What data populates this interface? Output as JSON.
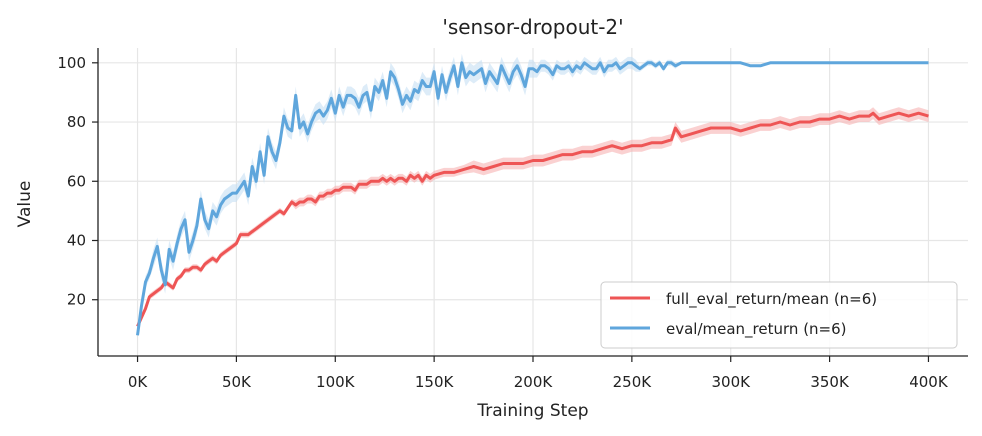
{
  "chart_data": {
    "type": "line",
    "title": "'sensor-dropout-2'",
    "xlabel": "Training Step",
    "ylabel": "Value",
    "xlim": [
      -20000,
      420000
    ],
    "ylim": [
      1,
      105
    ],
    "x_ticks": [
      0,
      50000,
      100000,
      150000,
      200000,
      250000,
      300000,
      350000,
      400000
    ],
    "x_tick_labels": [
      "0K",
      "50K",
      "100K",
      "150K",
      "200K",
      "250K",
      "300K",
      "350K",
      "400K"
    ],
    "y_ticks": [
      20,
      40,
      60,
      80,
      100
    ],
    "y_tick_labels": [
      "20",
      "40",
      "60",
      "80",
      "100"
    ],
    "grid": true,
    "legend_position": "lower-right",
    "series": [
      {
        "name": "full_eval_return/mean (n=6)",
        "color": "#ee5555",
        "band_color": "#f6b3b3",
        "x": [
          0,
          2000,
          4000,
          6000,
          8000,
          10000,
          12000,
          14000,
          16000,
          18000,
          20000,
          22000,
          24000,
          26000,
          28000,
          30000,
          32000,
          34000,
          36000,
          38000,
          40000,
          42000,
          44000,
          46000,
          48000,
          50000,
          52000,
          54000,
          56000,
          58000,
          60000,
          62000,
          64000,
          66000,
          68000,
          70000,
          72000,
          74000,
          76000,
          78000,
          80000,
          82000,
          84000,
          86000,
          88000,
          90000,
          92000,
          94000,
          96000,
          98000,
          100000,
          102000,
          104000,
          106000,
          108000,
          110000,
          112000,
          114000,
          116000,
          118000,
          120000,
          122000,
          124000,
          126000,
          128000,
          130000,
          132000,
          134000,
          136000,
          138000,
          140000,
          142000,
          144000,
          146000,
          148000,
          150000,
          155000,
          160000,
          165000,
          170000,
          175000,
          180000,
          185000,
          190000,
          195000,
          200000,
          205000,
          210000,
          215000,
          220000,
          225000,
          230000,
          235000,
          240000,
          245000,
          250000,
          255000,
          260000,
          265000,
          270000,
          272000,
          275000,
          280000,
          285000,
          290000,
          295000,
          300000,
          305000,
          310000,
          315000,
          320000,
          325000,
          330000,
          335000,
          340000,
          345000,
          350000,
          355000,
          360000,
          365000,
          370000,
          372000,
          375000,
          380000,
          385000,
          390000,
          395000,
          400000
        ],
        "values": [
          11,
          14,
          17,
          21,
          22,
          23,
          24,
          26,
          25,
          24,
          27,
          28,
          30,
          30,
          31,
          31,
          30,
          32,
          33,
          34,
          33,
          35,
          36,
          37,
          38,
          39,
          42,
          42,
          42,
          43,
          44,
          45,
          46,
          47,
          48,
          49,
          50,
          49,
          51,
          53,
          52,
          53,
          53,
          54,
          54,
          53,
          55,
          55,
          56,
          56,
          57,
          57,
          58,
          58,
          58,
          57,
          59,
          59,
          59,
          60,
          60,
          60,
          61,
          60,
          61,
          60,
          61,
          61,
          60,
          62,
          61,
          62,
          60,
          62,
          61,
          62,
          63,
          63,
          64,
          65,
          64,
          65,
          66,
          66,
          66,
          67,
          67,
          68,
          69,
          69,
          70,
          70,
          71,
          72,
          71,
          72,
          72,
          73,
          73,
          74,
          78,
          75,
          76,
          77,
          78,
          78,
          78,
          77,
          78,
          79,
          79,
          80,
          79,
          80,
          80,
          81,
          81,
          82,
          81,
          82,
          82,
          83,
          81,
          82,
          83,
          82,
          83,
          82
        ],
        "band": [
          1,
          1,
          1,
          1,
          1,
          1,
          1,
          1,
          1,
          1,
          1,
          1,
          1,
          1,
          1,
          1,
          1,
          1,
          1,
          1,
          1,
          1,
          1,
          1,
          1,
          1,
          1,
          1,
          1,
          1,
          1,
          1,
          1,
          1,
          1,
          1,
          1,
          1,
          1,
          1,
          1.5,
          1.5,
          1.5,
          1.5,
          1.5,
          1.5,
          1.5,
          1.5,
          1.5,
          1.5,
          1.5,
          1.5,
          1.5,
          1.5,
          1.5,
          1.5,
          1.5,
          1.5,
          1.5,
          1.5,
          1.5,
          1.5,
          1.5,
          1.5,
          1.5,
          1.5,
          1.5,
          1.5,
          1.5,
          1.5,
          1.5,
          1.5,
          1.5,
          1.5,
          1.5,
          1.5,
          1.5,
          1.5,
          1.5,
          2,
          2,
          2,
          2,
          2,
          2,
          2,
          2,
          2,
          2,
          2,
          2,
          2,
          2,
          2,
          2,
          2,
          2,
          2,
          2,
          2,
          2,
          2,
          2,
          2,
          2,
          2,
          2,
          2,
          2,
          2,
          2,
          2,
          2,
          2,
          2,
          2,
          2,
          2,
          2,
          2,
          2,
          2,
          2,
          2,
          2,
          2,
          2,
          2
        ]
      },
      {
        "name": "eval/mean_return (n=6)",
        "color": "#5fa6dc",
        "band_color": "#c6dff4",
        "x": [
          0,
          2000,
          4000,
          6000,
          8000,
          10000,
          12000,
          14000,
          16000,
          18000,
          20000,
          22000,
          24000,
          26000,
          28000,
          30000,
          32000,
          34000,
          36000,
          38000,
          40000,
          42000,
          44000,
          46000,
          48000,
          50000,
          52000,
          54000,
          56000,
          58000,
          60000,
          62000,
          64000,
          66000,
          68000,
          70000,
          72000,
          74000,
          76000,
          78000,
          80000,
          82000,
          84000,
          86000,
          88000,
          90000,
          92000,
          94000,
          96000,
          98000,
          100000,
          102000,
          104000,
          106000,
          108000,
          110000,
          112000,
          114000,
          116000,
          118000,
          120000,
          122000,
          124000,
          126000,
          128000,
          130000,
          132000,
          134000,
          136000,
          138000,
          140000,
          142000,
          144000,
          146000,
          148000,
          150000,
          152000,
          154000,
          156000,
          158000,
          160000,
          162000,
          164000,
          166000,
          168000,
          170000,
          172000,
          174000,
          176000,
          178000,
          180000,
          182000,
          184000,
          186000,
          188000,
          190000,
          192000,
          194000,
          196000,
          198000,
          200000,
          202000,
          204000,
          206000,
          208000,
          210000,
          212000,
          214000,
          216000,
          218000,
          220000,
          222000,
          224000,
          226000,
          228000,
          230000,
          232000,
          234000,
          236000,
          238000,
          240000,
          242000,
          244000,
          246000,
          248000,
          250000,
          252000,
          254000,
          256000,
          258000,
          260000,
          262000,
          264000,
          266000,
          268000,
          270000,
          272000,
          275000,
          300000,
          305000,
          310000,
          315000,
          320000,
          400000
        ],
        "values": [
          8,
          18,
          26,
          29,
          34,
          38,
          30,
          25,
          37,
          33,
          39,
          44,
          47,
          36,
          40,
          45,
          54,
          47,
          44,
          50,
          48,
          52,
          54,
          55,
          56,
          56,
          58,
          60,
          55,
          65,
          60,
          70,
          62,
          75,
          70,
          67,
          73,
          82,
          78,
          77,
          89,
          78,
          80,
          76,
          80,
          83,
          84,
          82,
          84,
          88,
          83,
          89,
          85,
          89,
          89,
          88,
          85,
          89,
          90,
          84,
          92,
          90,
          94,
          88,
          97,
          95,
          91,
          86,
          89,
          87,
          91,
          90,
          94,
          92,
          92,
          97,
          88,
          96,
          90,
          95,
          99,
          92,
          100,
          95,
          97,
          96,
          97,
          98,
          93,
          97,
          95,
          93,
          99,
          96,
          93,
          97,
          99,
          96,
          92,
          98,
          98,
          97,
          99,
          99,
          98,
          96,
          99,
          98,
          98,
          99,
          97,
          99,
          98,
          100,
          99,
          98,
          98,
          100,
          97,
          99,
          99,
          100,
          98,
          99,
          100,
          100,
          99,
          98,
          99,
          100,
          100,
          99,
          100,
          98,
          100,
          100,
          99,
          100,
          100,
          100,
          99,
          99,
          100,
          100
        ],
        "band": [
          1,
          2,
          2,
          2,
          3,
          3,
          3,
          3,
          3,
          3,
          3,
          3,
          3,
          3,
          3,
          3,
          3,
          3,
          3,
          3,
          3,
          3,
          3,
          3,
          3,
          3,
          3,
          3,
          3,
          3,
          3,
          3,
          3,
          3,
          3,
          3,
          3,
          3,
          3,
          3,
          3,
          3,
          3,
          3,
          3,
          3,
          3,
          3,
          3,
          3,
          3,
          3,
          3,
          3,
          3,
          3,
          3,
          3,
          3,
          3,
          3,
          3,
          3,
          3,
          3,
          3,
          3,
          3,
          3,
          3,
          3,
          3,
          3,
          3,
          3,
          3,
          3,
          3,
          3,
          3,
          3,
          3,
          3,
          3,
          3,
          3,
          3,
          3,
          3,
          3,
          3,
          3,
          3,
          3,
          3,
          3,
          3,
          3,
          3,
          3,
          3,
          2,
          2,
          2,
          2,
          2,
          2,
          2,
          2,
          2,
          2,
          2,
          2,
          2,
          2,
          2,
          2,
          2,
          2,
          2,
          2,
          2,
          2,
          2,
          2,
          2,
          2,
          1,
          1,
          1,
          1,
          1,
          1,
          1,
          1,
          1,
          1,
          0.5,
          0,
          0,
          0,
          0,
          0,
          0
        ]
      }
    ]
  }
}
